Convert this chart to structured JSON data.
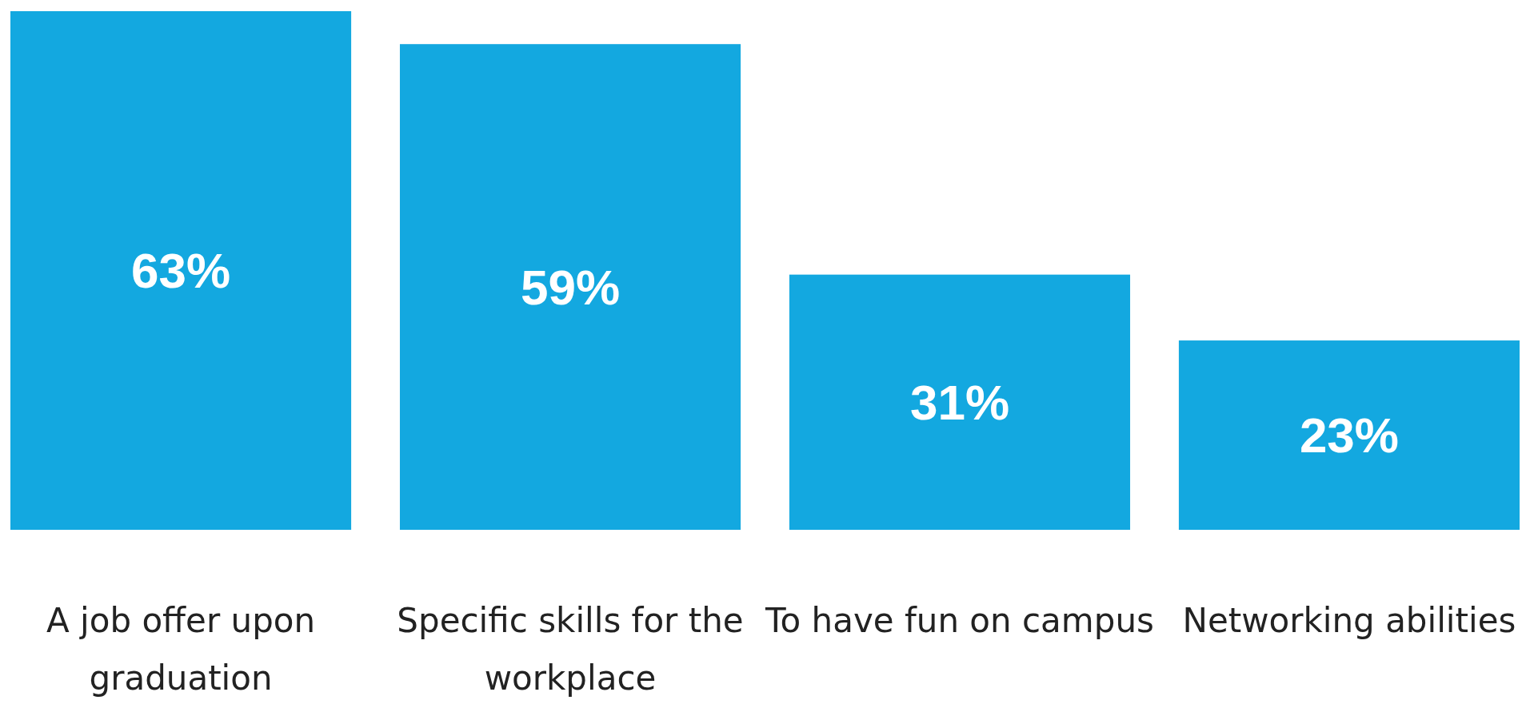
{
  "chart_data": {
    "type": "bar",
    "categories": [
      "A job offer upon graduation",
      "Specific skills for the workplace",
      "To have fun on campus",
      "Networking abilities"
    ],
    "values": [
      63,
      59,
      31,
      23
    ],
    "value_labels": [
      "63%",
      "59%",
      "31%",
      "23%"
    ],
    "color": "#13a8e0"
  }
}
